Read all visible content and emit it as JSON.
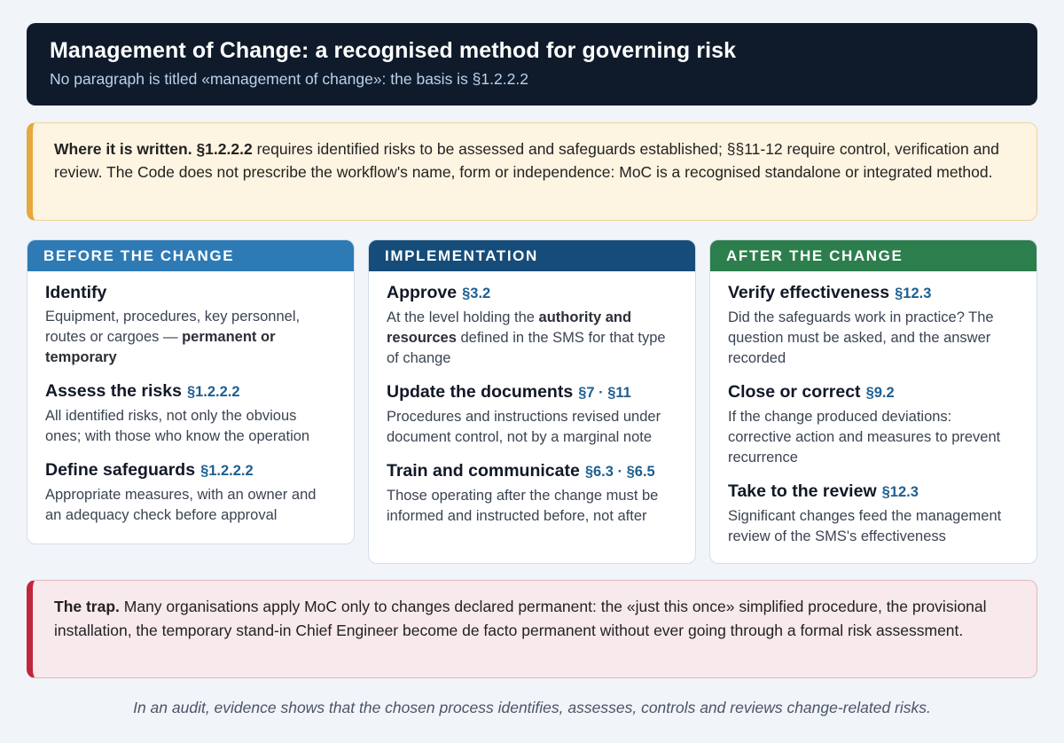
{
  "header": {
    "title": "Management of Change: a recognised method for governing risk",
    "subtitle": "No paragraph is titled «management of change»: the basis is §1.2.2.2"
  },
  "where_written": {
    "lead": "Where it is written.",
    "ref": "§1.2.2.2",
    "text": " requires identified risks to be assessed and safeguards established; §§11-12 require control, verification and review. The Code does not prescribe the workflow's name, form or independence: MoC is a recognised standalone or integrated method."
  },
  "columns": [
    {
      "header": "BEFORE THE CHANGE",
      "color": "#2e7ab5",
      "steps": [
        {
          "title": "Identify",
          "ref": "",
          "desc_a": "Equipment, procedures, key personnel, routes or cargoes — ",
          "desc_bold": "permanent or temporary",
          "desc_b": ""
        },
        {
          "title": "Assess the risks",
          "ref": "§1.2.2.2",
          "desc_a": "All identified risks, not only the obvious ones; with those who know the operation",
          "desc_bold": "",
          "desc_b": ""
        },
        {
          "title": "Define safeguards",
          "ref": "§1.2.2.2",
          "desc_a": "Appropriate measures, with an owner and an adequacy check before approval",
          "desc_bold": "",
          "desc_b": ""
        }
      ]
    },
    {
      "header": "IMPLEMENTATION",
      "color": "#164c79",
      "steps": [
        {
          "title": "Approve",
          "ref": "§3.2",
          "desc_a": "At the level holding the ",
          "desc_bold": "authority and resources",
          "desc_b": " defined in the SMS for that type of change"
        },
        {
          "title": "Update the documents",
          "ref": "§7 · §11",
          "desc_a": "Procedures and instructions revised under document control, not by a marginal note",
          "desc_bold": "",
          "desc_b": ""
        },
        {
          "title": "Train and communicate",
          "ref": "§6.3 · §6.5",
          "desc_a": "Those operating after the change must be informed and instructed before, not after",
          "desc_bold": "",
          "desc_b": ""
        }
      ]
    },
    {
      "header": "AFTER THE CHANGE",
      "color": "#2d7e4d",
      "steps": [
        {
          "title": "Verify effectiveness",
          "ref": "§12.3",
          "desc_a": "Did the safeguards work in practice? The question must be asked, and the answer recorded",
          "desc_bold": "",
          "desc_b": ""
        },
        {
          "title": "Close or correct",
          "ref": "§9.2",
          "desc_a": "If the change produced deviations: corrective action and measures to prevent recurrence",
          "desc_bold": "",
          "desc_b": ""
        },
        {
          "title": "Take to the review",
          "ref": "§12.3",
          "desc_a": "Significant changes feed the management review of the SMS's effectiveness",
          "desc_bold": "",
          "desc_b": ""
        }
      ]
    }
  ],
  "trap": {
    "lead": "The trap.",
    "text": " Many organisations apply MoC only to changes declared permanent: the «just this once» simplified procedure, the provisional installation, the temporary stand-in Chief Engineer become de facto permanent without ever going through a formal risk assessment."
  },
  "footer": "In an audit, evidence shows that the chosen process identifies, assesses, controls and reviews change-related risks."
}
